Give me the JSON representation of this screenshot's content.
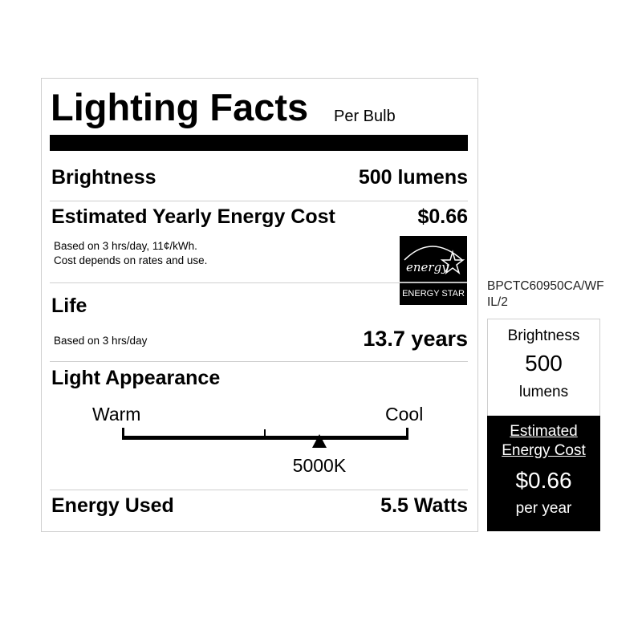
{
  "label": {
    "title": "Lighting Facts",
    "subtitle": "Per Bulb",
    "brightness": {
      "label": "Brightness",
      "value": "500 lumens"
    },
    "cost": {
      "label": "Estimated Yearly Energy Cost",
      "value": "$0.66",
      "note1": "Based on 3 hrs/day, 11¢/kWh.",
      "note2": "Cost depends on rates and use."
    },
    "energy_star": {
      "script": "energy",
      "label": "ENERGY STAR"
    },
    "life": {
      "label": "Life",
      "note": "Based on 3 hrs/day",
      "value": "13.7 years"
    },
    "appearance": {
      "label": "Light Appearance",
      "warm": "Warm",
      "cool": "Cool",
      "value": "5000K",
      "position_fraction": 0.69
    },
    "energy_used": {
      "label": "Energy Used",
      "value": "5.5 Watts"
    }
  },
  "model_code_line1": "BPCTC60950CA/WF",
  "model_code_line2": "IL/2",
  "side": {
    "brightness_label": "Brightness",
    "brightness_value": "500",
    "brightness_unit": "lumens",
    "cost_label1": "Estimated",
    "cost_label2": "Energy Cost",
    "cost_value": "$0.66",
    "cost_unit": "per year"
  }
}
